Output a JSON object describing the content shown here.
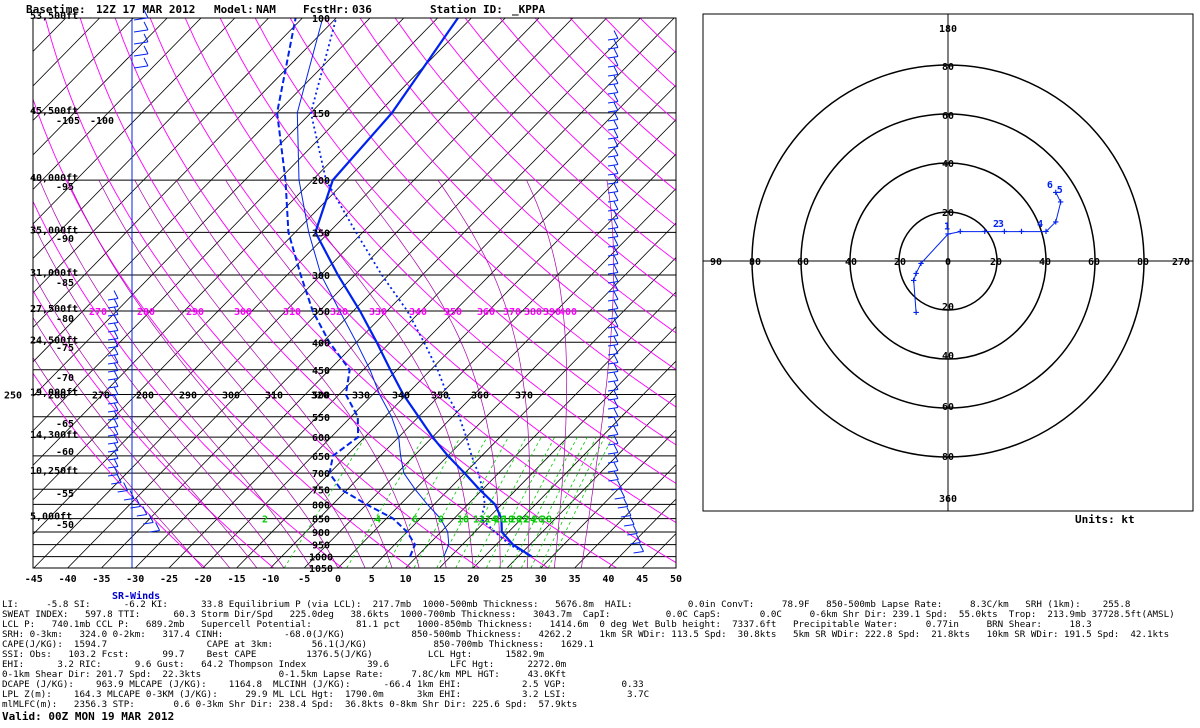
{
  "header": {
    "basetime_label": "Basetime:",
    "basetime": "12Z 17 MAR 2012",
    "model_label": "Model:",
    "model": "NAM",
    "fcsthr_label": "FcstHr:",
    "fcsthr": "036",
    "station_label": "Station ID:",
    "station": "_KPPA"
  },
  "skewt": {
    "pressure_levels": [
      100,
      150,
      200,
      250,
      300,
      350,
      400,
      450,
      500,
      550,
      600,
      650,
      700,
      750,
      800,
      850,
      900,
      950,
      1000,
      1050
    ],
    "pressure_labels": [
      "100",
      "150",
      "200",
      "250",
      "300",
      "350",
      "400",
      "450",
      "500",
      "550",
      "600",
      "650",
      "700",
      "750",
      "800",
      "850",
      "900",
      "950",
      "1000",
      "1050"
    ],
    "height_labels": [
      "53,500ft",
      "45,500ft",
      "40,000ft",
      "35,000ft",
      "31,000ft",
      "27,500ft",
      "24,500ft",
      "19,000ft",
      "14,300ft",
      "10,250ft",
      "5,000ft"
    ],
    "height_label_pressures": [
      100,
      150,
      200,
      250,
      300,
      350,
      400,
      500,
      600,
      700,
      850
    ],
    "temp_axis_labels": [
      "-45",
      "-40",
      "-35",
      "-30",
      "-25",
      "-20",
      "-15",
      "-10",
      "-5",
      "0",
      "5",
      "10",
      "15",
      "20",
      "25",
      "30",
      "35",
      "40",
      "45",
      "50"
    ],
    "temp_axis_values": [
      -45,
      -40,
      -35,
      -30,
      -25,
      -20,
      -15,
      -10,
      -5,
      0,
      5,
      10,
      15,
      20,
      25,
      30,
      35,
      40,
      45,
      50
    ],
    "left_temp_labels": [
      "-105",
      "-100",
      "-95",
      "-90",
      "-85",
      "-80",
      "-75",
      "-70",
      "-65",
      "-60",
      "-55",
      "-50"
    ],
    "theta_labels_350": [
      "270",
      "280",
      "290",
      "300",
      "310",
      "320",
      "330",
      "340",
      "350",
      "360",
      "370",
      "380",
      "390",
      "400"
    ],
    "theta_labels_500": [
      "250",
      "260",
      "270",
      "280",
      "290",
      "300",
      "310",
      "320",
      "330",
      "340",
      "350",
      "360",
      "370"
    ],
    "mixing_labels_850": [
      "2",
      "4",
      "6",
      "8",
      "10",
      "12",
      "14",
      "16",
      "18",
      "20",
      "22",
      "24",
      "26",
      "28"
    ],
    "mixing_ratio_values": [
      2,
      4,
      6,
      8,
      10,
      12,
      14,
      16,
      18,
      20,
      22,
      24,
      26,
      28
    ],
    "temperature_profile": [
      [
        1000,
        27
      ],
      [
        950,
        22.5
      ],
      [
        900,
        19
      ],
      [
        850,
        17
      ],
      [
        800,
        14
      ],
      [
        750,
        9.5
      ],
      [
        700,
        5
      ],
      [
        650,
        0
      ],
      [
        600,
        -5
      ],
      [
        550,
        -10
      ],
      [
        500,
        -15.5
      ],
      [
        450,
        -21
      ],
      [
        400,
        -27
      ],
      [
        350,
        -34
      ],
      [
        300,
        -42.5
      ],
      [
        250,
        -52
      ],
      [
        200,
        -57
      ],
      [
        150,
        -58
      ],
      [
        100,
        -62
      ]
    ],
    "dewpoint_profile": [
      [
        1000,
        9
      ],
      [
        950,
        8
      ],
      [
        900,
        5
      ],
      [
        850,
        1
      ],
      [
        800,
        -5
      ],
      [
        750,
        -11
      ],
      [
        700,
        -15
      ],
      [
        650,
        -17
      ],
      [
        600,
        -16
      ],
      [
        550,
        -19
      ],
      [
        500,
        -24
      ],
      [
        450,
        -27
      ],
      [
        400,
        -34
      ],
      [
        350,
        -41
      ],
      [
        300,
        -48
      ],
      [
        250,
        -56
      ],
      [
        200,
        -64
      ],
      [
        150,
        -75
      ],
      [
        100,
        -86
      ]
    ],
    "parcel_profile": [
      [
        1000,
        27
      ],
      [
        950,
        22
      ],
      [
        900,
        18
      ],
      [
        850,
        14
      ],
      [
        800,
        12.5
      ],
      [
        750,
        10
      ],
      [
        700,
        7
      ],
      [
        650,
        3.5
      ],
      [
        600,
        0
      ],
      [
        550,
        -4
      ],
      [
        500,
        -9
      ],
      [
        450,
        -14
      ],
      [
        400,
        -20
      ],
      [
        350,
        -27
      ],
      [
        300,
        -36
      ],
      [
        250,
        -46
      ],
      [
        200,
        -58
      ],
      [
        150,
        -70
      ],
      [
        100,
        -80
      ]
    ],
    "wetbulb_profile": [
      [
        1000,
        14
      ],
      [
        950,
        13
      ],
      [
        900,
        11
      ],
      [
        850,
        8
      ],
      [
        800,
        4
      ],
      [
        750,
        0
      ],
      [
        700,
        -4
      ],
      [
        650,
        -7
      ],
      [
        600,
        -10
      ],
      [
        550,
        -14
      ],
      [
        500,
        -19
      ],
      [
        450,
        -24
      ],
      [
        400,
        -30
      ],
      [
        350,
        -37
      ],
      [
        300,
        -45
      ],
      [
        250,
        -53
      ],
      [
        200,
        -62
      ],
      [
        150,
        -72
      ],
      [
        100,
        -82
      ]
    ],
    "colors": {
      "temp": "#0022ee",
      "isobar": "#000000",
      "isotherm": "#000000",
      "dry_adiabat": "#ff00ff",
      "moist_adiabat": "#aa00aa",
      "mixing_ratio": "#00cc00",
      "wind": "#0022ee"
    }
  },
  "hodograph": {
    "ring_labels_top": [
      "180",
      "60",
      "40",
      "20"
    ],
    "ring_labels_bottom": [
      "20",
      "40",
      "60",
      "80",
      "360"
    ],
    "ring_labels_left": [
      "90",
      "80",
      "60",
      "40",
      "20"
    ],
    "ring_labels_right": [
      "20",
      "40",
      "60",
      "80",
      "270"
    ],
    "center_label": "0",
    "top_outer": "80",
    "trace": [
      [
        -13,
        -21
      ],
      [
        -14,
        -8
      ],
      [
        -13,
        -5
      ],
      [
        -11,
        -1
      ],
      [
        0,
        11
      ],
      [
        5,
        12
      ],
      [
        15,
        12
      ],
      [
        23,
        12
      ],
      [
        30,
        12
      ],
      [
        40,
        12
      ],
      [
        44,
        16
      ],
      [
        46,
        24
      ],
      [
        44,
        28
      ]
    ],
    "height_labels": [
      "1",
      "2",
      "3",
      "4",
      "5",
      "6"
    ],
    "height_points": [
      [
        0,
        12
      ],
      [
        20,
        13
      ],
      [
        22,
        13
      ],
      [
        38,
        13
      ],
      [
        46,
        27
      ],
      [
        42,
        29
      ]
    ],
    "units_label": "Units: kt"
  },
  "sr_winds_label": "SR-Winds",
  "stats_lines": [
    "LI:     -5.8 SI:      -6.2 KI:      33.8 Equilibrium P (via LCL):  217.7mb  1000-500mb Thickness:   5676.8m  HAIL:          0.0in ConvT:     78.9F   850-500mb Lapse Rate:     8.3C/km   SRH (1km):    255.8",
    "SWEAT INDEX:   597.8 TTI:      60.3 Storm Dir/Spd   225.0deg   38.6kts  1000-700mb Thickness:   3043.7m  CapI:          0.0C CapS:       0.0C     0-6km Shr Dir: 239.1 Spd:  55.0kts  Trop:  213.9mb 37728.5ft(AMSL)",
    "LCL P:   740.1mb CCL P:   689.2mb   Supercell Potential:        81.1 pct   1000-850mb Thickness:   1414.6m  0 deg Wet Bulb height:  7337.6ft   Precipitable Water:     0.77in     BRN Shear:     18.3",
    "SRH: 0-3km:   324.0 0-2km:   317.4 CINH:           -68.0(J/KG)            850-500mb Thickness:   4262.2     1km SR WDir: 113.5 Spd:  30.8kts   5km SR WDir: 222.8 Spd:  21.8kts   10km SR WDir: 191.5 Spd:  42.1kts",
    "CAPE(J/KG):  1594.7                  CAPE at 3km:       56.1(J/KG)            850-700mb Thickness:   1629.1",
    "SSI: Obs:   103.2 Fcst:      99.7    Best CAPE         1376.5(J/KG)          LCL Hgt:      1582.9m",
    "EHI:      3.2 RIC:      9.6 Gust:   64.2 Thompson Index           39.6           LFC Hgt:      2272.0m",
    "0-1km Shear Dir: 201.7 Spd:  22.3kts              0-1.5km Lapse Rate:     7.8C/km MPL HGT:     43.0Kft",
    "DCAPE (J/KG):    963.9 MLCAPE (J/KG):    1164.8  MLCINH (J/KG):      -66.4 1km EHI:           2.5 VGP:          0.33",
    "LPL Z(m):    164.3 MLCAPE 0-3KM (J/KG):     29.9 ML LCL Hgt:  1790.0m      3km EHI:           3.2 LSI:           3.7C",
    "mlMLFC(m):   2356.3 STP:       0.6 0-3km Shr Dir: 238.4 Spd:  36.8kts 0-8km Shr Dir: 225.6 Spd:  57.9kts"
  ],
  "valid": "Valid: 00Z MON 19 MAR 2012"
}
